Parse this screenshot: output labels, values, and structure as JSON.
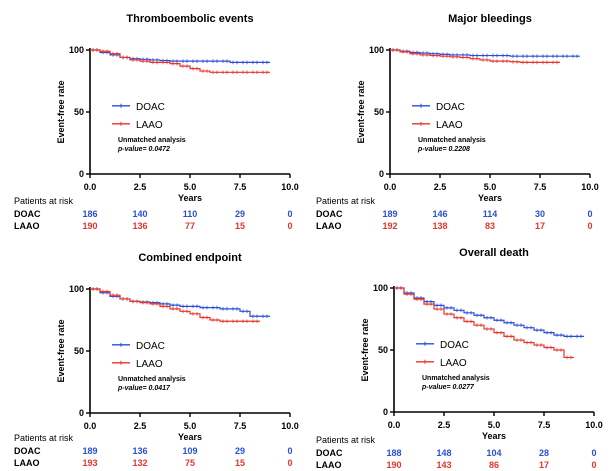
{
  "colors": {
    "DOAC": "#2a4ed8",
    "LAAO": "#e8342c",
    "axis": "#000000"
  },
  "chart_data": [
    {
      "type": "line",
      "title": "Thromboembolic events",
      "ylabel": "Event-free rate",
      "xlabel": "Years",
      "xlim": [
        0,
        10
      ],
      "ylim": [
        0,
        100
      ],
      "xticks": [
        "0.0",
        "2.5",
        "5.0",
        "7.5",
        "10.0"
      ],
      "yticks": [
        "0",
        "50",
        "100"
      ],
      "legend": "center-left",
      "annotation": "Unmatched analysis",
      "pvalue": "p-value= 0.0472",
      "series": [
        {
          "name": "DOAC",
          "x": [
            0,
            0.5,
            1,
            1.5,
            2,
            2.5,
            3,
            3.5,
            4,
            4.5,
            5,
            5.5,
            6,
            6.5,
            7,
            7.5,
            8,
            8.5,
            9
          ],
          "y": [
            100,
            98,
            96,
            94,
            93,
            92.5,
            92,
            91.5,
            91,
            91,
            91,
            91,
            91,
            91,
            90,
            90,
            90,
            90,
            90
          ]
        },
        {
          "name": "LAAO",
          "x": [
            0,
            0.5,
            1,
            1.5,
            2,
            2.5,
            3,
            3.5,
            4,
            4.5,
            5,
            5.5,
            6,
            6.5,
            7,
            7.5,
            8,
            8.5,
            9
          ],
          "y": [
            100,
            99,
            97,
            94,
            92,
            91,
            90,
            90,
            89,
            87,
            85,
            83,
            82,
            82,
            82,
            82,
            82,
            82,
            82
          ]
        }
      ],
      "risk": {
        "header": "Patients at risk",
        "rows": [
          {
            "name": "DOAC",
            "values": [
              "186",
              "140",
              "110",
              "29",
              "0"
            ]
          },
          {
            "name": "LAAO",
            "values": [
              "190",
              "136",
              "77",
              "15",
              "0"
            ]
          }
        ]
      }
    },
    {
      "type": "line",
      "title": "Major bleedings",
      "ylabel": "Event-free rate",
      "xlabel": "Years",
      "xlim": [
        0,
        10
      ],
      "ylim": [
        0,
        100
      ],
      "xticks": [
        "0.0",
        "2.5",
        "5.0",
        "7.5",
        "10.0"
      ],
      "yticks": [
        "0",
        "50",
        "100"
      ],
      "legend": "center-left",
      "annotation": "Unmatched analysis",
      "pvalue": "p-value= 0.2208",
      "series": [
        {
          "name": "DOAC",
          "x": [
            0,
            0.5,
            1,
            1.5,
            2,
            2.5,
            3,
            3.5,
            4,
            4.5,
            5,
            5.5,
            6,
            6.5,
            7,
            7.5,
            8,
            8.5,
            9,
            9.5
          ],
          "y": [
            100,
            99,
            98,
            97.5,
            97,
            96.5,
            96,
            96,
            95.5,
            95.5,
            95.5,
            95.5,
            95,
            95,
            95,
            95,
            95,
            95,
            95,
            95
          ]
        },
        {
          "name": "LAAO",
          "x": [
            0,
            0.5,
            1,
            1.5,
            2,
            2.5,
            3,
            3.5,
            4,
            4.5,
            5,
            5.5,
            6,
            6.5,
            7,
            7.5,
            8,
            8.5
          ],
          "y": [
            100,
            98.5,
            97,
            96,
            95.5,
            95,
            94.5,
            94,
            93,
            92,
            91,
            91,
            90.5,
            90,
            90,
            90,
            90,
            90
          ]
        }
      ],
      "risk": {
        "header": "Patients at risk",
        "rows": [
          {
            "name": "DOAC",
            "values": [
              "189",
              "146",
              "114",
              "30",
              "0"
            ]
          },
          {
            "name": "LAAO",
            "values": [
              "192",
              "138",
              "83",
              "17",
              "0"
            ]
          }
        ]
      }
    },
    {
      "type": "line",
      "title": "Combined endpoint",
      "ylabel": "Event-free rate",
      "xlabel": "Years",
      "xlim": [
        0,
        10
      ],
      "ylim": [
        0,
        100
      ],
      "xticks": [
        "0.0",
        "2.5",
        "5.0",
        "7.5",
        "10.0"
      ],
      "yticks": [
        "0",
        "50",
        "100"
      ],
      "legend": "center-left",
      "annotation": "Unmatched analysis",
      "pvalue": "p-value= 0.0417",
      "series": [
        {
          "name": "DOAC",
          "x": [
            0,
            0.5,
            1,
            1.5,
            2,
            2.5,
            3,
            3.5,
            4,
            4.5,
            5,
            5.5,
            6,
            6.5,
            7,
            7.5,
            8,
            8.5,
            9
          ],
          "y": [
            100,
            97,
            94,
            92,
            90,
            89.5,
            89,
            88,
            87,
            86,
            86,
            85,
            85,
            84,
            84,
            82,
            78,
            78,
            78
          ]
        },
        {
          "name": "LAAO",
          "x": [
            0,
            0.5,
            1,
            1.5,
            2,
            2.5,
            3,
            3.5,
            4,
            4.5,
            5,
            5.5,
            6,
            6.5,
            7,
            7.5,
            8,
            8.5
          ],
          "y": [
            100,
            98,
            95,
            92,
            90,
            89,
            88,
            86,
            84,
            82,
            80,
            77,
            75,
            74,
            74,
            74,
            74,
            74
          ]
        }
      ],
      "risk": {
        "header": "Patients at risk",
        "rows": [
          {
            "name": "DOAC",
            "values": [
              "189",
              "136",
              "109",
              "29",
              "0"
            ]
          },
          {
            "name": "LAAO",
            "values": [
              "193",
              "132",
              "75",
              "15",
              "0"
            ]
          }
        ]
      }
    },
    {
      "type": "line",
      "title": "Overall death",
      "ylabel": "Event-free rate",
      "xlabel": "Years",
      "xlim": [
        0,
        10
      ],
      "ylim": [
        0,
        100
      ],
      "xticks": [
        "0.0",
        "2.5",
        "5.0",
        "7.5",
        "10.0"
      ],
      "yticks": [
        "0",
        "50",
        "100"
      ],
      "legend": "center-left",
      "annotation": "Unmatched analysis",
      "pvalue": "p-value= 0.0277",
      "series": [
        {
          "name": "DOAC",
          "x": [
            0,
            0.5,
            1,
            1.5,
            2,
            2.5,
            3,
            3.5,
            4,
            4.5,
            5,
            5.5,
            6,
            6.5,
            7,
            7.5,
            8,
            8.5,
            9,
            9.5
          ],
          "y": [
            100,
            96,
            92,
            89,
            86,
            84,
            82,
            80,
            78,
            76,
            74,
            72,
            70,
            68,
            66,
            64,
            62,
            61,
            61,
            61
          ]
        },
        {
          "name": "LAAO",
          "x": [
            0,
            0.5,
            1,
            1.5,
            2,
            2.5,
            3,
            3.5,
            4,
            4.5,
            5,
            5.5,
            6,
            6.5,
            7,
            7.5,
            8,
            8.5,
            9
          ],
          "y": [
            100,
            95,
            91,
            87,
            83,
            79,
            76,
            73,
            70,
            67,
            64,
            61,
            58,
            56,
            54,
            52,
            50,
            44,
            44
          ]
        }
      ],
      "risk": {
        "header": "Patients at risk",
        "rows": [
          {
            "name": "DOAC",
            "values": [
              "188",
              "148",
              "104",
              "28",
              "0"
            ]
          },
          {
            "name": "LAAO",
            "values": [
              "190",
              "143",
              "86",
              "17",
              "0"
            ]
          }
        ]
      }
    }
  ]
}
